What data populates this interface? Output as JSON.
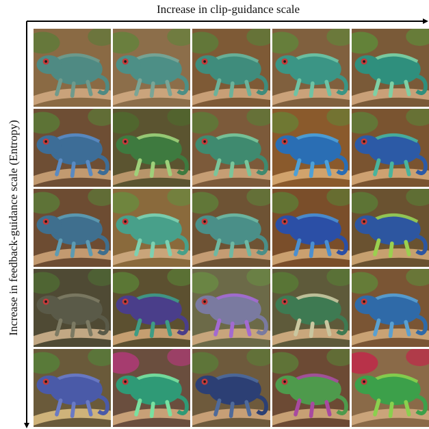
{
  "x_axis_label": "Increase in clip-guidance scale",
  "y_axis_label": "Increase in feedback-guidance scale (Entropy)",
  "grid": {
    "rows": 5,
    "columns": 5
  },
  "cells": [
    [
      {
        "bg": "#8a6a44",
        "body": "#4f8a83",
        "accent": "#6f9a8c",
        "leaf": "#5f7a3a",
        "branch": "#c9a27a"
      },
      {
        "bg": "#8c6e4a",
        "body": "#4d8f86",
        "accent": "#7aa596",
        "leaf": "#64823c",
        "branch": "#caa47c"
      },
      {
        "bg": "#7e5a36",
        "body": "#3f8c7c",
        "accent": "#6cb29a",
        "leaf": "#5d7d39",
        "branch": "#c89f76"
      },
      {
        "bg": "#80603e",
        "body": "#3b9585",
        "accent": "#6fc3a4",
        "leaf": "#62843b",
        "branch": "#caa27a"
      },
      {
        "bg": "#7a5a38",
        "body": "#2f8f7d",
        "accent": "#7fd0a4",
        "leaf": "#5f8a3a",
        "branch": "#c9a078"
      }
    ],
    [
      {
        "bg": "#6e4e34",
        "body": "#3d6d97",
        "accent": "#5a8ac2",
        "leaf": "#5b7a37",
        "branch": "#c29a70"
      },
      {
        "bg": "#5b5430",
        "body": "#3e7a3f",
        "accent": "#9fd07a",
        "leaf": "#4f6a2e",
        "branch": "#b8956a"
      },
      {
        "bg": "#7c5a3a",
        "body": "#3f8a6f",
        "accent": "#7bc59a",
        "leaf": "#5d7a38",
        "branch": "#c69e74"
      },
      {
        "bg": "#8a5a2c",
        "body": "#2a6eb4",
        "accent": "#4ea0d6",
        "leaf": "#6a7e35",
        "branch": "#d1a36c"
      },
      {
        "bg": "#7a5430",
        "body": "#2c5aa6",
        "accent": "#49b49c",
        "leaf": "#5f7d38",
        "branch": "#cda171"
      }
    ],
    [
      {
        "bg": "#6d4c32",
        "body": "#3f6f8e",
        "accent": "#5d9bb2",
        "leaf": "#5c7a38",
        "branch": "#c39a70"
      },
      {
        "bg": "#8a6a3c",
        "body": "#48a08a",
        "accent": "#7ed0b0",
        "leaf": "#6a8a3e",
        "branch": "#c9a57a"
      },
      {
        "bg": "#6e5334",
        "body": "#4a8f88",
        "accent": "#6fb8a2",
        "leaf": "#5f7e3a",
        "branch": "#c49c73"
      },
      {
        "bg": "#7a4e2a",
        "body": "#2b4fa6",
        "accent": "#4b8fd0",
        "leaf": "#5f7a35",
        "branch": "#caa06f"
      },
      {
        "bg": "#6a5230",
        "body": "#2d56a0",
        "accent": "#9ad04f",
        "leaf": "#5b7a36",
        "branch": "#c6a06f"
      }
    ],
    [
      {
        "bg": "#4f4a34",
        "body": "#5a5a48",
        "accent": "#7c7a63",
        "leaf": "#4f6a34",
        "branch": "#c2a884"
      },
      {
        "bg": "#5c5030",
        "body": "#4a3e8a",
        "accent": "#3f9c84",
        "leaf": "#5a7e36",
        "branch": "#c59e70"
      },
      {
        "bg": "#6c6a48",
        "body": "#7a7aa0",
        "accent": "#a36ad0",
        "leaf": "#6a8a44",
        "branch": "#c7a57c"
      },
      {
        "bg": "#5e5a3a",
        "body": "#3e7a52",
        "accent": "#c9c7a0",
        "leaf": "#587a36",
        "branch": "#c9a77c"
      },
      {
        "bg": "#7a5534",
        "body": "#2f6aa8",
        "accent": "#5aa0d0",
        "leaf": "#62843a",
        "branch": "#c9a274"
      }
    ],
    [
      {
        "bg": "#6a5a3a",
        "body": "#4a5aa8",
        "accent": "#6a7ac4",
        "leaf": "#56803a",
        "branch": "#cfb37a"
      },
      {
        "bg": "#6a4e3e",
        "body": "#2f9a76",
        "accent": "#7ae0a0",
        "leaf": "#b03a78",
        "branch": "#c8a077"
      },
      {
        "bg": "#6e5a3c",
        "body": "#2c3f74",
        "accent": "#4f6a9a",
        "leaf": "#5c7a38",
        "branch": "#c79f76"
      },
      {
        "bg": "#6c4a34",
        "body": "#4e9a4c",
        "accent": "#a84aa0",
        "leaf": "#5d7a38",
        "branch": "#c7a074"
      },
      {
        "bg": "#8a6a48",
        "body": "#3ca04a",
        "accent": "#8ad04e",
        "leaf": "#c0284a",
        "branch": "#caa47a"
      }
    ]
  ]
}
